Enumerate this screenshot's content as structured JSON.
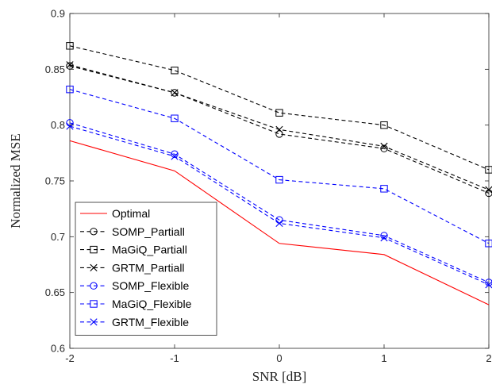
{
  "chart_data": {
    "type": "line",
    "xlabel": "SNR [dB]",
    "ylabel": "Normalized MSE",
    "x": [
      -2,
      -1,
      0,
      1,
      2
    ],
    "xticks": [
      "-2",
      "-1",
      "0",
      "1",
      "2"
    ],
    "yticks": [
      "0.6",
      "0.65",
      "0.7",
      "0.75",
      "0.8",
      "0.85",
      "0.9"
    ],
    "xlim": [
      -2,
      2
    ],
    "ylim": [
      0.6,
      0.9
    ],
    "grid": false,
    "legend_position": "bottom-left",
    "series": [
      {
        "name": "Optimal",
        "color": "#ff0000",
        "dash": "solid",
        "marker": "none",
        "values": [
          0.786,
          0.759,
          0.694,
          0.684,
          0.639
        ]
      },
      {
        "name": "SOMP_Partiall",
        "color": "#000000",
        "dash": "dashed",
        "marker": "circle",
        "values": [
          0.853,
          0.829,
          0.792,
          0.779,
          0.739
        ]
      },
      {
        "name": "MaGiQ_Partiall",
        "color": "#000000",
        "dash": "dashed",
        "marker": "square",
        "values": [
          0.871,
          0.849,
          0.811,
          0.8,
          0.76
        ]
      },
      {
        "name": "GRTM_Partiall",
        "color": "#000000",
        "dash": "dashed",
        "marker": "x",
        "values": [
          0.854,
          0.829,
          0.796,
          0.781,
          0.742
        ]
      },
      {
        "name": "SOMP_Flexible",
        "color": "#0000ff",
        "dash": "dashed",
        "marker": "circle",
        "values": [
          0.802,
          0.774,
          0.715,
          0.701,
          0.659
        ]
      },
      {
        "name": "MaGiQ_Flexible",
        "color": "#0000ff",
        "dash": "dashed",
        "marker": "square",
        "values": [
          0.832,
          0.806,
          0.751,
          0.743,
          0.694
        ]
      },
      {
        "name": "GRTM_Flexible",
        "color": "#0000ff",
        "dash": "dashed",
        "marker": "x",
        "values": [
          0.799,
          0.772,
          0.712,
          0.699,
          0.657
        ]
      }
    ]
  }
}
